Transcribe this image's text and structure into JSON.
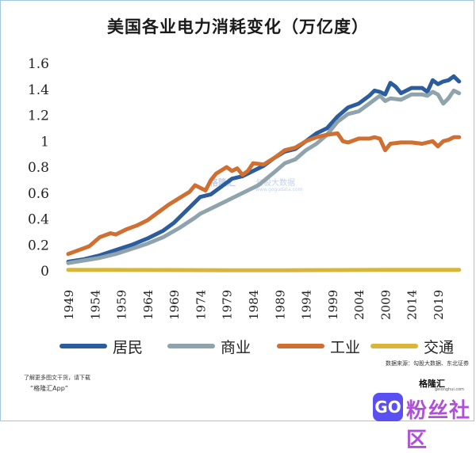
{
  "title": "美国各业电力消耗变化（万亿度）",
  "footer": {
    "line1": "了解更多图文干货，请下载",
    "line2": "“格隆汇App”",
    "source": "数据来源：勾股大数据、东北证券",
    "brand": "格隆汇",
    "brand_sub": "gelonghui.com",
    "forum_text": "粉丝社区",
    "forum_icon": "GO"
  },
  "watermark": {
    "logo": "格隆汇",
    "sub": "勾股大数据",
    "url": "www.gogudata.com"
  },
  "chart_data": {
    "type": "line",
    "title": "美国各业电力消耗变化（万亿度）",
    "xlabel": "",
    "ylabel": "",
    "ylim": [
      0,
      1.6
    ],
    "xlim": [
      1949,
      2022
    ],
    "yticks": [
      0,
      0.2,
      0.4,
      0.6,
      0.8,
      1,
      1.2,
      1.4,
      1.6
    ],
    "ytick_labels": [
      "0",
      "0.2",
      "0.4",
      "0.6",
      "0.8",
      "1",
      "1.2",
      "1.4",
      "1.6"
    ],
    "xticks": [
      1949,
      1954,
      1959,
      1964,
      1969,
      1974,
      1979,
      1984,
      1989,
      1994,
      1999,
      2004,
      2009,
      2014,
      2019
    ],
    "grid": false,
    "legend_position": "bottom",
    "series": [
      {
        "name": "居民",
        "color": "#2b5c9e",
        "points": [
          [
            1949,
            0.07
          ],
          [
            1952,
            0.09
          ],
          [
            1955,
            0.12
          ],
          [
            1958,
            0.16
          ],
          [
            1961,
            0.2
          ],
          [
            1964,
            0.25
          ],
          [
            1967,
            0.31
          ],
          [
            1969,
            0.37
          ],
          [
            1971,
            0.45
          ],
          [
            1973,
            0.53
          ],
          [
            1974,
            0.57
          ],
          [
            1976,
            0.59
          ],
          [
            1978,
            0.65
          ],
          [
            1980,
            0.71
          ],
          [
            1982,
            0.73
          ],
          [
            1984,
            0.77
          ],
          [
            1986,
            0.81
          ],
          [
            1988,
            0.87
          ],
          [
            1990,
            0.92
          ],
          [
            1992,
            0.94
          ],
          [
            1994,
            1.0
          ],
          [
            1996,
            1.06
          ],
          [
            1998,
            1.1
          ],
          [
            2000,
            1.19
          ],
          [
            2002,
            1.26
          ],
          [
            2004,
            1.29
          ],
          [
            2006,
            1.35
          ],
          [
            2007,
            1.39
          ],
          [
            2008,
            1.38
          ],
          [
            2009,
            1.36
          ],
          [
            2010,
            1.45
          ],
          [
            2011,
            1.42
          ],
          [
            2012,
            1.37
          ],
          [
            2014,
            1.41
          ],
          [
            2016,
            1.41
          ],
          [
            2017,
            1.38
          ],
          [
            2018,
            1.47
          ],
          [
            2019,
            1.44
          ],
          [
            2020,
            1.46
          ],
          [
            2021,
            1.47
          ],
          [
            2022,
            1.5
          ],
          [
            2023,
            1.46
          ]
        ]
      },
      {
        "name": "商业",
        "color": "#8fa3ad",
        "points": [
          [
            1949,
            0.06
          ],
          [
            1952,
            0.08
          ],
          [
            1955,
            0.1
          ],
          [
            1958,
            0.13
          ],
          [
            1961,
            0.17
          ],
          [
            1964,
            0.21
          ],
          [
            1967,
            0.26
          ],
          [
            1970,
            0.33
          ],
          [
            1973,
            0.41
          ],
          [
            1974,
            0.44
          ],
          [
            1976,
            0.48
          ],
          [
            1979,
            0.54
          ],
          [
            1982,
            0.6
          ],
          [
            1985,
            0.66
          ],
          [
            1988,
            0.76
          ],
          [
            1990,
            0.83
          ],
          [
            1992,
            0.86
          ],
          [
            1994,
            0.93
          ],
          [
            1996,
            0.98
          ],
          [
            1998,
            1.05
          ],
          [
            2000,
            1.15
          ],
          [
            2002,
            1.21
          ],
          [
            2004,
            1.23
          ],
          [
            2006,
            1.29
          ],
          [
            2008,
            1.35
          ],
          [
            2009,
            1.31
          ],
          [
            2010,
            1.33
          ],
          [
            2012,
            1.32
          ],
          [
            2014,
            1.36
          ],
          [
            2016,
            1.36
          ],
          [
            2017,
            1.35
          ],
          [
            2018,
            1.38
          ],
          [
            2019,
            1.36
          ],
          [
            2020,
            1.29
          ],
          [
            2021,
            1.33
          ],
          [
            2022,
            1.39
          ],
          [
            2023,
            1.37
          ]
        ]
      },
      {
        "name": "工业",
        "color": "#d06f32",
        "points": [
          [
            1949,
            0.13
          ],
          [
            1951,
            0.16
          ],
          [
            1953,
            0.19
          ],
          [
            1955,
            0.26
          ],
          [
            1957,
            0.29
          ],
          [
            1958,
            0.28
          ],
          [
            1960,
            0.32
          ],
          [
            1962,
            0.35
          ],
          [
            1964,
            0.39
          ],
          [
            1966,
            0.45
          ],
          [
            1968,
            0.51
          ],
          [
            1970,
            0.56
          ],
          [
            1972,
            0.61
          ],
          [
            1973,
            0.66
          ],
          [
            1974,
            0.64
          ],
          [
            1975,
            0.62
          ],
          [
            1976,
            0.7
          ],
          [
            1977,
            0.75
          ],
          [
            1979,
            0.8
          ],
          [
            1980,
            0.77
          ],
          [
            1981,
            0.79
          ],
          [
            1982,
            0.74
          ],
          [
            1983,
            0.77
          ],
          [
            1984,
            0.83
          ],
          [
            1986,
            0.82
          ],
          [
            1988,
            0.87
          ],
          [
            1990,
            0.93
          ],
          [
            1992,
            0.95
          ],
          [
            1994,
            1.0
          ],
          [
            1996,
            1.03
          ],
          [
            1998,
            1.05
          ],
          [
            2000,
            1.06
          ],
          [
            2001,
            1.0
          ],
          [
            2002,
            0.99
          ],
          [
            2004,
            1.02
          ],
          [
            2006,
            1.02
          ],
          [
            2007,
            1.03
          ],
          [
            2008,
            1.02
          ],
          [
            2009,
            0.93
          ],
          [
            2010,
            0.98
          ],
          [
            2012,
            0.99
          ],
          [
            2014,
            0.99
          ],
          [
            2016,
            0.98
          ],
          [
            2018,
            1.0
          ],
          [
            2019,
            0.96
          ],
          [
            2020,
            1.0
          ],
          [
            2021,
            1.01
          ],
          [
            2022,
            1.03
          ],
          [
            2023,
            1.03
          ]
        ]
      },
      {
        "name": "交通",
        "color": "#d9b63a",
        "points": [
          [
            1949,
            0.008
          ],
          [
            1960,
            0.007
          ],
          [
            1970,
            0.006
          ],
          [
            1980,
            0.005
          ],
          [
            1990,
            0.005
          ],
          [
            2000,
            0.006
          ],
          [
            2010,
            0.008
          ],
          [
            2023,
            0.008
          ]
        ]
      }
    ]
  }
}
